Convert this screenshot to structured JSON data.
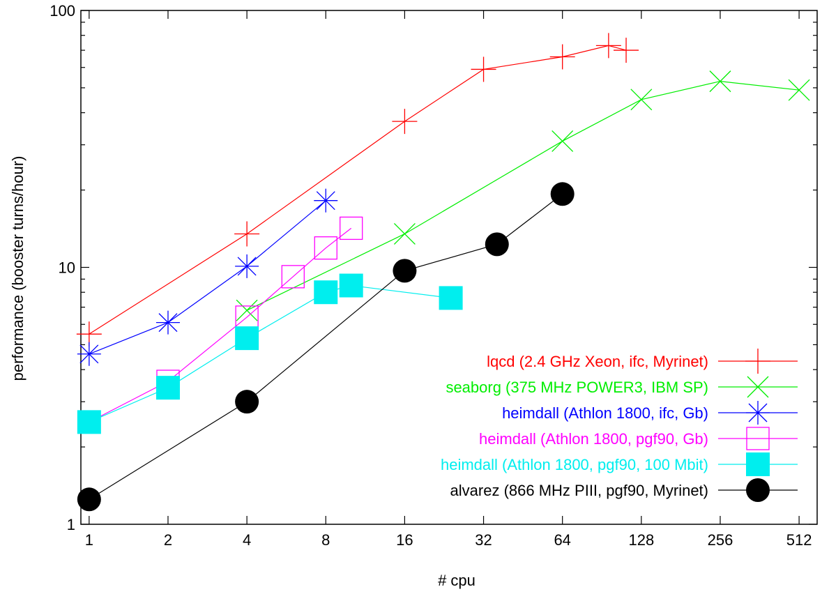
{
  "chart_data": {
    "type": "line",
    "title": "",
    "xlabel": "# cpu",
    "ylabel": "performance (booster turns/hour)",
    "x_scale": "log2",
    "y_scale": "log10",
    "xlim": [
      0.93,
      600
    ],
    "ylim": [
      1,
      100
    ],
    "x_ticks": [
      1,
      2,
      4,
      8,
      16,
      32,
      64,
      128,
      256,
      512
    ],
    "x_tick_labels": [
      "1",
      "2",
      "4",
      "8",
      "16",
      "32",
      "64",
      "128",
      "256",
      "512"
    ],
    "y_ticks": [
      1,
      10,
      100
    ],
    "y_tick_labels": [
      "1",
      "10",
      "100"
    ],
    "grid": false,
    "legend_position": "bottom-right",
    "series": [
      {
        "name": "lqcd (2.4 GHz Xeon, ifc, Myrinet)",
        "color": "#ff0000",
        "marker": "plus",
        "x": [
          1,
          4,
          16,
          32,
          64,
          96,
          112
        ],
        "y": [
          5.5,
          13.5,
          37,
          59,
          66,
          73,
          70
        ]
      },
      {
        "name": "seaborg (375 MHz POWER3, IBM SP)",
        "color": "#00ee00",
        "marker": "cross",
        "x": [
          4,
          16,
          64,
          128,
          256,
          512
        ],
        "y": [
          6.8,
          13.5,
          31,
          45,
          53,
          49
        ]
      },
      {
        "name": "heimdall (Athlon 1800, ifc, Gb)",
        "color": "#0000ff",
        "marker": "asterisk",
        "x": [
          1,
          2,
          4,
          8
        ],
        "y": [
          4.6,
          6.1,
          10.1,
          18.2
        ]
      },
      {
        "name": "heimdall (Athlon 1800, pgf90, Gb)",
        "color": "#ff00ff",
        "marker": "square-open",
        "x": [
          1,
          2,
          4,
          6,
          8,
          10
        ],
        "y": [
          2.5,
          3.6,
          6.4,
          9.2,
          11.9,
          14.2
        ]
      },
      {
        "name": "heimdall (Athlon 1800, pgf90, 100 Mbit)",
        "color": "#00eeee",
        "marker": "square-filled",
        "x": [
          1,
          2,
          4,
          8,
          10,
          24
        ],
        "y": [
          2.5,
          3.4,
          5.3,
          8.0,
          8.5,
          7.6
        ]
      },
      {
        "name": "alvarez (866 MHz PIII, pgf90, Myrinet)",
        "color": "#000000",
        "marker": "circle-filled",
        "x": [
          1,
          4,
          16,
          36,
          64
        ],
        "y": [
          1.25,
          3.0,
          9.7,
          12.3,
          19.3
        ]
      }
    ]
  }
}
